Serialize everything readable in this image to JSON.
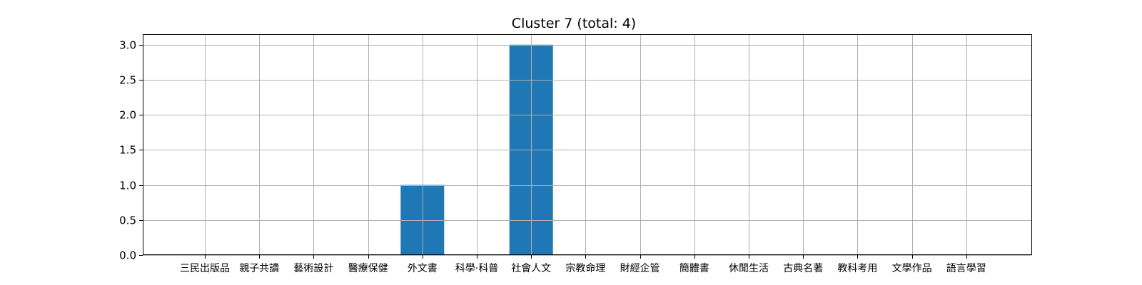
{
  "chart_data": {
    "type": "bar",
    "title": "Cluster 7 (total: 4)",
    "xlabel": "",
    "ylabel": "",
    "categories": [
      "三民出版品",
      "親子共讀",
      "藝術設計",
      "醫療保健",
      "外文書",
      "科學·科普",
      "社會人文",
      "宗教命理",
      "財經企管",
      "簡體書",
      "休閒生活",
      "古典名著",
      "教科考用",
      "文學作品",
      "語言學習"
    ],
    "values": [
      0,
      0,
      0,
      0,
      1,
      0,
      3,
      0,
      0,
      0,
      0,
      0,
      0,
      0,
      0
    ],
    "ylim": [
      0,
      3.15
    ],
    "yticks": [
      "0.0",
      "0.5",
      "1.0",
      "1.5",
      "2.0",
      "2.5",
      "3.0"
    ],
    "grid": true,
    "bar_color": "#1f77b4"
  }
}
